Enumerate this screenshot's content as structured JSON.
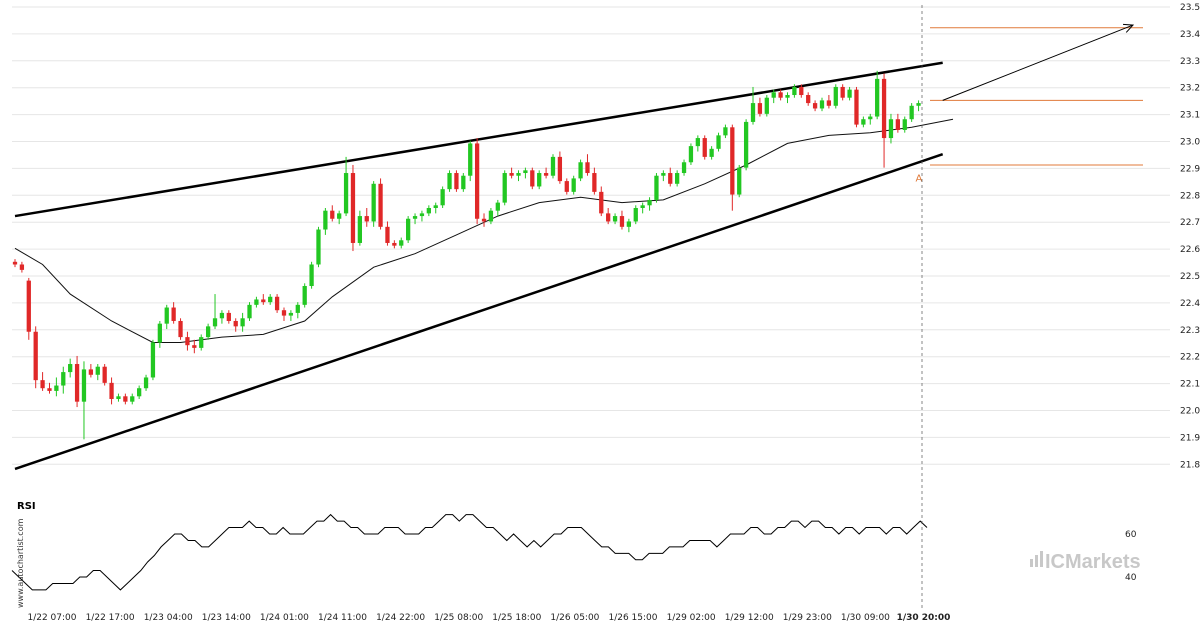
{
  "chart_data": [
    {
      "type": "candlestick",
      "title": "",
      "ylabel": "",
      "ylim": [
        21.8,
        23.56
      ],
      "y_ticks": [
        "23.5372",
        "23.4372",
        "23.3372",
        "23.2372",
        "23.1372",
        "23.0372",
        "22.9372",
        "22.8372",
        "22.7372",
        "22.6372",
        "22.5372",
        "22.4372",
        "22.3372",
        "22.2372",
        "22.1372",
        "22.0372",
        "21.9372",
        "21.8372"
      ],
      "x_ticks": [
        "1/22 07:00",
        "1/22 17:00",
        "1/23 04:00",
        "1/23 14:00",
        "1/24 01:00",
        "1/24 11:00",
        "1/24 22:00",
        "1/25 08:00",
        "1/25 18:00",
        "1/26 05:00",
        "1/26 15:00",
        "1/29 02:00",
        "1/29 12:00",
        "1/29 23:00",
        "1/30 09:00",
        "1/30 20:00"
      ],
      "highlight_x_tick": "1/30 20:00",
      "candles": [
        [
          22.59,
          22.6,
          22.57,
          22.58
        ],
        [
          22.58,
          22.59,
          22.55,
          22.56
        ],
        [
          22.52,
          22.53,
          22.3,
          22.33
        ],
        [
          22.33,
          22.35,
          22.12,
          22.15
        ],
        [
          22.15,
          22.18,
          22.11,
          22.12
        ],
        [
          22.12,
          22.14,
          22.1,
          22.11
        ],
        [
          22.11,
          22.16,
          22.09,
          22.13
        ],
        [
          22.13,
          22.2,
          22.1,
          22.18
        ],
        [
          22.18,
          22.23,
          22.16,
          22.21
        ],
        [
          22.21,
          22.24,
          22.05,
          22.07
        ],
        [
          22.07,
          22.22,
          21.93,
          22.19
        ],
        [
          22.19,
          22.21,
          22.16,
          22.17
        ],
        [
          22.17,
          22.21,
          22.15,
          22.2
        ],
        [
          22.2,
          22.21,
          22.13,
          22.14
        ],
        [
          22.14,
          22.16,
          22.06,
          22.08
        ],
        [
          22.08,
          22.1,
          22.07,
          22.09
        ],
        [
          22.09,
          22.1,
          22.06,
          22.07
        ],
        [
          22.07,
          22.1,
          22.06,
          22.09
        ],
        [
          22.09,
          22.13,
          22.08,
          22.12
        ],
        [
          22.12,
          22.17,
          22.11,
          22.16
        ],
        [
          22.16,
          22.3,
          22.15,
          22.29
        ],
        [
          22.29,
          22.37,
          22.27,
          22.36
        ],
        [
          22.36,
          22.43,
          22.34,
          22.42
        ],
        [
          22.42,
          22.44,
          22.36,
          22.37
        ],
        [
          22.37,
          22.38,
          22.3,
          22.31
        ],
        [
          22.31,
          22.33,
          22.26,
          22.28
        ],
        [
          22.28,
          22.3,
          22.25,
          22.27
        ],
        [
          22.27,
          22.32,
          22.26,
          22.31
        ],
        [
          22.31,
          22.36,
          22.3,
          22.35
        ],
        [
          22.35,
          22.47,
          22.34,
          22.38
        ],
        [
          22.38,
          22.41,
          22.36,
          22.4
        ],
        [
          22.4,
          22.41,
          22.36,
          22.37
        ],
        [
          22.37,
          22.38,
          22.33,
          22.35
        ],
        [
          22.35,
          22.4,
          22.33,
          22.38
        ],
        [
          22.38,
          22.44,
          22.37,
          22.43
        ],
        [
          22.43,
          22.46,
          22.42,
          22.45
        ],
        [
          22.45,
          22.47,
          22.43,
          22.44
        ],
        [
          22.44,
          22.47,
          22.43,
          22.46
        ],
        [
          22.46,
          22.47,
          22.4,
          22.41
        ],
        [
          22.41,
          22.42,
          22.37,
          22.39
        ],
        [
          22.39,
          22.41,
          22.37,
          22.4
        ],
        [
          22.4,
          22.44,
          22.38,
          22.43
        ],
        [
          22.43,
          22.51,
          22.42,
          22.5
        ],
        [
          22.5,
          22.59,
          22.49,
          22.58
        ],
        [
          22.58,
          22.72,
          22.57,
          22.71
        ],
        [
          22.71,
          22.79,
          22.69,
          22.78
        ],
        [
          22.78,
          22.8,
          22.74,
          22.75
        ],
        [
          22.75,
          22.78,
          22.73,
          22.77
        ],
        [
          22.77,
          22.98,
          22.76,
          22.92
        ],
        [
          22.92,
          22.95,
          22.63,
          22.66
        ],
        [
          22.66,
          22.78,
          22.65,
          22.76
        ],
        [
          22.76,
          22.79,
          22.72,
          22.74
        ],
        [
          22.74,
          22.89,
          22.72,
          22.88
        ],
        [
          22.88,
          22.9,
          22.71,
          22.72
        ],
        [
          22.72,
          22.74,
          22.65,
          22.66
        ],
        [
          22.66,
          22.67,
          22.64,
          22.65
        ],
        [
          22.65,
          22.68,
          22.64,
          22.67
        ],
        [
          22.67,
          22.76,
          22.66,
          22.75
        ],
        [
          22.75,
          22.77,
          22.73,
          22.76
        ],
        [
          22.76,
          22.78,
          22.74,
          22.77
        ],
        [
          22.77,
          22.8,
          22.76,
          22.79
        ],
        [
          22.79,
          22.81,
          22.77,
          22.8
        ],
        [
          22.8,
          22.87,
          22.79,
          22.86
        ],
        [
          22.86,
          22.93,
          22.85,
          22.92
        ],
        [
          22.92,
          22.93,
          22.85,
          22.86
        ],
        [
          22.86,
          22.92,
          22.85,
          22.91
        ],
        [
          22.91,
          23.04,
          22.89,
          23.03
        ],
        [
          23.03,
          23.05,
          22.73,
          22.75
        ],
        [
          22.75,
          22.77,
          22.72,
          22.74
        ],
        [
          22.74,
          22.79,
          22.73,
          22.78
        ],
        [
          22.78,
          22.82,
          22.76,
          22.81
        ],
        [
          22.81,
          22.93,
          22.8,
          22.92
        ],
        [
          22.92,
          22.94,
          22.9,
          22.91
        ],
        [
          22.91,
          22.93,
          22.89,
          22.92
        ],
        [
          22.92,
          22.94,
          22.9,
          22.93
        ],
        [
          22.93,
          22.94,
          22.86,
          22.87
        ],
        [
          22.87,
          22.93,
          22.86,
          22.92
        ],
        [
          22.92,
          22.94,
          22.9,
          22.91
        ],
        [
          22.91,
          22.99,
          22.9,
          22.98
        ],
        [
          22.98,
          23.0,
          22.88,
          22.89
        ],
        [
          22.89,
          22.9,
          22.84,
          22.85
        ],
        [
          22.85,
          22.91,
          22.84,
          22.9
        ],
        [
          22.9,
          22.97,
          22.89,
          22.96
        ],
        [
          22.96,
          22.99,
          22.91,
          22.92
        ],
        [
          22.92,
          22.94,
          22.84,
          22.85
        ],
        [
          22.85,
          22.87,
          22.76,
          22.77
        ],
        [
          22.77,
          22.79,
          22.73,
          22.74
        ],
        [
          22.74,
          22.77,
          22.73,
          22.76
        ],
        [
          22.76,
          22.78,
          22.71,
          22.72
        ],
        [
          22.72,
          22.75,
          22.7,
          22.74
        ],
        [
          22.74,
          22.8,
          22.73,
          22.79
        ],
        [
          22.79,
          22.81,
          22.77,
          22.8
        ],
        [
          22.8,
          22.83,
          22.78,
          22.82
        ],
        [
          22.82,
          22.92,
          22.81,
          22.91
        ],
        [
          22.91,
          22.93,
          22.89,
          22.92
        ],
        [
          22.92,
          22.94,
          22.87,
          22.88
        ],
        [
          22.88,
          22.93,
          22.87,
          22.92
        ],
        [
          22.92,
          22.97,
          22.91,
          22.96
        ],
        [
          22.96,
          23.03,
          22.95,
          23.02
        ],
        [
          23.02,
          23.06,
          23.0,
          23.05
        ],
        [
          23.05,
          23.06,
          22.97,
          22.98
        ],
        [
          22.98,
          23.02,
          22.97,
          23.01
        ],
        [
          23.01,
          23.07,
          23.0,
          23.06
        ],
        [
          23.06,
          23.1,
          23.05,
          23.09
        ],
        [
          23.09,
          23.1,
          22.78,
          22.84
        ],
        [
          22.84,
          22.95,
          22.83,
          22.94
        ],
        [
          22.94,
          23.12,
          22.93,
          23.11
        ],
        [
          23.11,
          23.24,
          23.1,
          23.18
        ],
        [
          23.18,
          23.2,
          23.13,
          23.14
        ],
        [
          23.14,
          23.21,
          23.13,
          23.2
        ],
        [
          23.2,
          23.23,
          23.18,
          23.22
        ],
        [
          23.22,
          23.23,
          23.19,
          23.2
        ],
        [
          23.2,
          23.22,
          23.18,
          23.21
        ],
        [
          23.21,
          23.25,
          23.2,
          23.24
        ],
        [
          23.24,
          23.25,
          23.2,
          23.21
        ],
        [
          23.21,
          23.22,
          23.17,
          23.18
        ],
        [
          23.18,
          23.19,
          23.15,
          23.16
        ],
        [
          23.16,
          23.2,
          23.15,
          23.19
        ],
        [
          23.19,
          23.21,
          23.16,
          23.17
        ],
        [
          23.17,
          23.25,
          23.16,
          23.24
        ],
        [
          23.24,
          23.25,
          23.19,
          23.2
        ],
        [
          23.2,
          23.24,
          23.19,
          23.23
        ],
        [
          23.23,
          23.24,
          23.09,
          23.1
        ],
        [
          23.1,
          23.13,
          23.09,
          23.12
        ],
        [
          23.12,
          23.14,
          23.1,
          23.13
        ],
        [
          23.13,
          23.3,
          23.12,
          23.27
        ],
        [
          23.27,
          23.29,
          22.94,
          23.05
        ],
        [
          23.05,
          23.14,
          23.03,
          23.12
        ],
        [
          23.12,
          23.14,
          23.07,
          23.08
        ],
        [
          23.08,
          23.13,
          23.07,
          23.12
        ],
        [
          23.12,
          23.18,
          23.11,
          23.17
        ],
        [
          23.17,
          23.19,
          23.15,
          23.18
        ]
      ],
      "moving_average": [
        [
          0,
          22.64
        ],
        [
          4,
          22.58
        ],
        [
          8,
          22.47
        ],
        [
          14,
          22.37
        ],
        [
          20,
          22.29
        ],
        [
          24,
          22.29
        ],
        [
          30,
          22.31
        ],
        [
          36,
          22.32
        ],
        [
          42,
          22.37
        ],
        [
          46,
          22.46
        ],
        [
          52,
          22.57
        ],
        [
          58,
          22.62
        ],
        [
          64,
          22.69
        ],
        [
          70,
          22.76
        ],
        [
          76,
          22.81
        ],
        [
          82,
          22.83
        ],
        [
          88,
          22.81
        ],
        [
          94,
          22.82
        ],
        [
          100,
          22.88
        ],
        [
          106,
          22.95
        ],
        [
          112,
          23.03
        ],
        [
          118,
          23.06
        ],
        [
          124,
          23.07
        ],
        [
          130,
          23.09
        ],
        [
          136,
          23.12
        ]
      ],
      "channel": {
        "upper": [
          [
            0,
            22.76
          ],
          [
            134.5,
            23.33
          ]
        ],
        "lower": [
          [
            0,
            21.82
          ],
          [
            134.5,
            22.99
          ]
        ]
      },
      "projection_arrow": {
        "from": [
          134.5,
          23.19
        ],
        "to": [
          164,
          23.47
        ]
      },
      "levels": [
        {
          "value": 23.46,
          "color": "#e07a3a"
        },
        {
          "value": 23.19,
          "color": "#e07a3a"
        },
        {
          "value": 22.95,
          "color": "#e07a3a"
        }
      ],
      "point_label": {
        "text": "A",
        "x": 131,
        "y": 22.93
      },
      "up_color": "#22c722",
      "down_color": "#e02828"
    },
    {
      "type": "line",
      "title": "RSI",
      "ylim": [
        30,
        80
      ],
      "y_ticks": [
        "60",
        "40"
      ],
      "values": [
        43,
        40,
        37,
        34,
        34,
        34,
        37,
        37,
        37,
        37,
        40,
        40,
        43,
        43,
        40,
        37,
        34,
        37,
        40,
        43,
        47,
        50,
        54,
        57,
        60,
        60,
        57,
        57,
        54,
        54,
        57,
        60,
        63,
        63,
        63,
        66,
        63,
        63,
        60,
        60,
        63,
        60,
        60,
        60,
        63,
        66,
        66,
        69,
        66,
        66,
        63,
        63,
        60,
        60,
        60,
        63,
        63,
        63,
        60,
        60,
        60,
        63,
        63,
        66,
        69,
        69,
        66,
        69,
        69,
        66,
        63,
        63,
        60,
        57,
        60,
        57,
        54,
        57,
        54,
        57,
        60,
        60,
        63,
        63,
        63,
        60,
        57,
        54,
        54,
        51,
        51,
        51,
        48,
        48,
        51,
        51,
        51,
        54,
        54,
        54,
        57,
        57,
        57,
        57,
        54,
        57,
        60,
        60,
        60,
        63,
        63,
        60,
        60,
        63,
        63,
        66,
        66,
        63,
        66,
        66,
        63,
        63,
        60,
        63,
        63,
        60,
        63,
        63,
        63,
        60,
        63,
        63,
        60,
        63,
        66,
        63
      ],
      "line_color": "#000000"
    }
  ],
  "watermark": {
    "left_text": "www.autochartist.com",
    "brand_text": "ICMarkets",
    "brand_color": "#c8c8c8"
  },
  "colors": {
    "grid": "#e6e6e6",
    "axis": "#cfcfcf",
    "level": "#e07a3a",
    "text": "#222222"
  }
}
